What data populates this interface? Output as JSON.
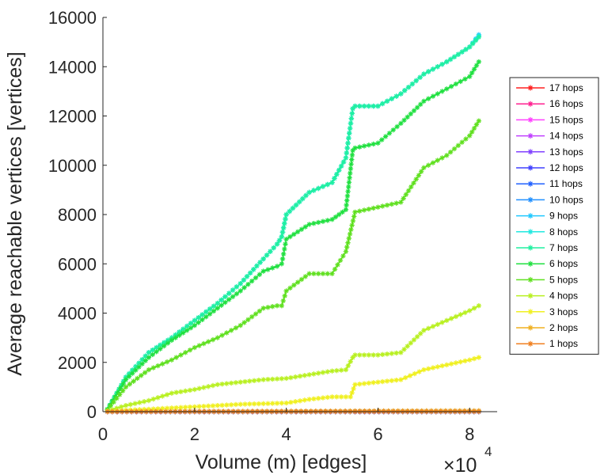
{
  "chart_data": {
    "type": "line",
    "xlabel": "Volume (m) [edges]",
    "ylabel": "Average reachable vertices [vertices]",
    "x_exponent_base": "×10",
    "x_exponent_power": "4",
    "xlim": [
      0,
      8.6
    ],
    "ylim": [
      0,
      16000
    ],
    "x_ticks": [
      "0",
      "2",
      "4",
      "6",
      "8"
    ],
    "y_ticks": [
      "0",
      "2000",
      "4000",
      "6000",
      "8000",
      "10000",
      "12000",
      "14000",
      "16000"
    ],
    "grid": false,
    "legend_position": "right",
    "series": [
      {
        "name": "17 hops",
        "color": "#ff2020",
        "x": [
          0.1,
          2,
          4,
          5.5,
          8.2
        ],
        "y": [
          0,
          0,
          0,
          0,
          0
        ]
      },
      {
        "name": "16 hops",
        "color": "#ff2090",
        "x": [
          0.1,
          2,
          4,
          5.5,
          8.2
        ],
        "y": [
          0,
          0,
          0,
          0,
          0
        ]
      },
      {
        "name": "15 hops",
        "color": "#ff40ff",
        "x": [
          0.1,
          2,
          4,
          5.5,
          8.2
        ],
        "y": [
          0,
          0,
          0,
          0,
          0
        ]
      },
      {
        "name": "14 hops",
        "color": "#c040ff",
        "x": [
          0.1,
          2,
          4,
          5.5,
          8.2
        ],
        "y": [
          0,
          0,
          0,
          0,
          0
        ]
      },
      {
        "name": "13 hops",
        "color": "#8040ff",
        "x": [
          0.1,
          2,
          4,
          5.5,
          8.2
        ],
        "y": [
          0,
          0,
          0,
          0,
          0
        ]
      },
      {
        "name": "12 hops",
        "color": "#4040ff",
        "x": [
          0.1,
          2,
          4,
          5.5,
          8.2
        ],
        "y": [
          0,
          0,
          0,
          0,
          0
        ]
      },
      {
        "name": "11 hops",
        "color": "#2060ff",
        "x": [
          0.1,
          2,
          4,
          5.5,
          8.2
        ],
        "y": [
          0,
          0,
          0,
          0,
          0
        ]
      },
      {
        "name": "10 hops",
        "color": "#2090ff",
        "x": [
          0.1,
          2,
          4,
          5.5,
          8.2
        ],
        "y": [
          0,
          0,
          0,
          0,
          0
        ]
      },
      {
        "name": "9 hops",
        "color": "#20c8ff",
        "x": [
          0.1,
          0.5,
          1,
          1.5,
          2,
          2.5,
          3,
          3.5,
          3.8,
          3.9,
          4.0,
          4.5,
          5.0,
          5.3,
          5.45,
          5.5,
          6.0,
          6.5,
          7,
          7.5,
          8,
          8.2
        ],
        "y": [
          100,
          1400,
          2400,
          3000,
          3700,
          4400,
          5200,
          6200,
          6800,
          7100,
          8000,
          8900,
          9300,
          10300,
          12300,
          12400,
          12400,
          12900,
          13700,
          14200,
          14800,
          15300
        ]
      },
      {
        "name": "8 hops",
        "color": "#20e8e0",
        "x": [
          0.1,
          0.5,
          1,
          1.5,
          2,
          2.5,
          3,
          3.5,
          3.8,
          3.9,
          4.0,
          4.5,
          5.0,
          5.3,
          5.45,
          5.5,
          6.0,
          6.5,
          7,
          7.5,
          8,
          8.2
        ],
        "y": [
          100,
          1400,
          2400,
          3000,
          3700,
          4400,
          5200,
          6200,
          6800,
          7100,
          8000,
          8900,
          9300,
          10300,
          12300,
          12400,
          12400,
          12900,
          13700,
          14200,
          14800,
          15250
        ]
      },
      {
        "name": "7 hops",
        "color": "#20f0a0",
        "x": [
          0.1,
          0.5,
          1,
          1.5,
          2,
          2.5,
          3,
          3.5,
          3.8,
          3.9,
          4.0,
          4.5,
          5.0,
          5.3,
          5.45,
          5.5,
          6.0,
          6.5,
          7,
          7.5,
          8,
          8.2
        ],
        "y": [
          100,
          1400,
          2400,
          3000,
          3700,
          4400,
          5200,
          6200,
          6800,
          7100,
          8000,
          8900,
          9300,
          10300,
          12300,
          12400,
          12400,
          12900,
          13700,
          14200,
          14800,
          15200
        ]
      },
      {
        "name": "6 hops",
        "color": "#20e040",
        "x": [
          0.1,
          0.5,
          1,
          1.5,
          2,
          2.5,
          3,
          3.5,
          3.8,
          3.9,
          4.0,
          4.5,
          5.0,
          5.3,
          5.45,
          5.5,
          6.0,
          6.5,
          7,
          7.5,
          8,
          8.2
        ],
        "y": [
          100,
          1300,
          2200,
          2900,
          3500,
          4200,
          4900,
          5700,
          5900,
          6000,
          7000,
          7600,
          7800,
          8200,
          10600,
          10700,
          10900,
          11700,
          12600,
          13100,
          13600,
          14200
        ]
      },
      {
        "name": "5 hops",
        "color": "#60e020",
        "x": [
          0.1,
          0.5,
          1,
          1.5,
          2,
          2.5,
          3,
          3.5,
          3.8,
          3.9,
          4.0,
          4.5,
          5.0,
          5.3,
          5.5,
          6.0,
          6.5,
          7,
          7.5,
          8,
          8.2
        ],
        "y": [
          80,
          1000,
          1700,
          2100,
          2600,
          3000,
          3500,
          4200,
          4300,
          4300,
          4900,
          5600,
          5600,
          6500,
          8100,
          8300,
          8500,
          9900,
          10400,
          11200,
          11800
        ]
      },
      {
        "name": "4 hops",
        "color": "#b8f020",
        "x": [
          0.1,
          0.5,
          1,
          1.5,
          2,
          2.5,
          3,
          3.5,
          4.0,
          4.5,
          5.0,
          5.3,
          5.45,
          5.5,
          6.0,
          6.5,
          7,
          7.5,
          8,
          8.2
        ],
        "y": [
          30,
          250,
          450,
          750,
          900,
          1100,
          1200,
          1300,
          1350,
          1500,
          1650,
          1700,
          2200,
          2300,
          2300,
          2400,
          3300,
          3700,
          4100,
          4300
        ]
      },
      {
        "name": "3 hops",
        "color": "#f0f020",
        "x": [
          0.1,
          0.5,
          1,
          2,
          3,
          4,
          4.5,
          5.0,
          5.4,
          5.5,
          6.0,
          6.5,
          7,
          7.5,
          8,
          8.2
        ],
        "y": [
          10,
          60,
          100,
          200,
          300,
          350,
          500,
          600,
          600,
          1100,
          1200,
          1300,
          1700,
          1900,
          2100,
          2200
        ]
      },
      {
        "name": "2 hops",
        "color": "#f0b020",
        "x": [
          0.1,
          2,
          4,
          5.5,
          8.2
        ],
        "y": [
          2,
          10,
          20,
          30,
          40
        ]
      },
      {
        "name": "1 hops",
        "color": "#f08020",
        "x": [
          0.1,
          2,
          4,
          5.5,
          8.2
        ],
        "y": [
          0,
          0,
          0,
          0,
          0
        ]
      }
    ]
  }
}
